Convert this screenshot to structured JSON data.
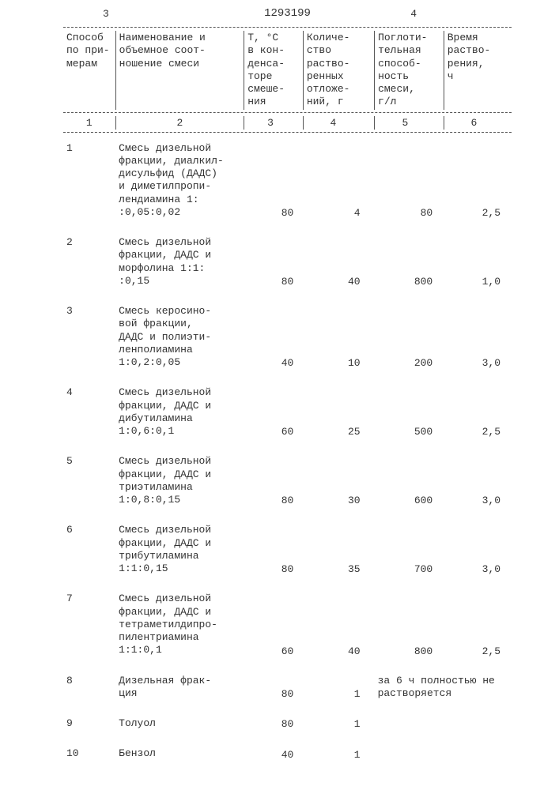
{
  "page": {
    "left_num": "3",
    "right_num": "4",
    "patent_no": "1293199"
  },
  "columns": {
    "h1": "Способ\nпо при-\nмерам",
    "h2": "Наименование и\nобъемное соот-\nношение смеси",
    "h3": "Т, °С\nв кон-\nденса-\nторе\nсмеше-\nния",
    "h4": "Количе-\nство\nраство-\nренных\nотложе-\nний, г",
    "h5": "Поглоти-\nтельная\nспособ-\nность\nсмеси,\nг/л",
    "h6": "Время\nраство-\nрения,\nч"
  },
  "colnums": {
    "n1": "1",
    "n2": "2",
    "n3": "3",
    "n4": "4",
    "n5": "5",
    "n6": "6"
  },
  "rows": [
    {
      "n": "1",
      "desc": "Смесь дизельной\nфракции, диалкил-\nдисульфид (ДАДС)\nи диметилпропи-\nлендиамина 1:\n:0,05:0,02",
      "t": "80",
      "q": "4",
      "p": "80",
      "tm": "2,5"
    },
    {
      "n": "2",
      "desc": "Смесь дизельной\nфракции, ДАДС и\nморфолина 1:1:\n:0,15",
      "t": "80",
      "q": "40",
      "p": "800",
      "tm": "1,0"
    },
    {
      "n": "3",
      "desc": "Смесь керосино-\nвой фракции,\nДАДС и полиэти-\nленполиамина\n1:0,2:0,05",
      "t": "40",
      "q": "10",
      "p": "200",
      "tm": "3,0"
    },
    {
      "n": "4",
      "desc": "Смесь дизельной\nфракции, ДАДС и\nдибутиламина\n1:0,6:0,1",
      "t": "60",
      "q": "25",
      "p": "500",
      "tm": "2,5"
    },
    {
      "n": "5",
      "desc": "Смесь дизельной\nфракции, ДАДС и\nтриэтиламина\n1:0,8:0,15",
      "t": "80",
      "q": "30",
      "p": "600",
      "tm": "3,0"
    },
    {
      "n": "6",
      "desc": "Смесь дизельной\nфракции, ДАДС и\nтрибутиламина\n1:1:0,15",
      "t": "80",
      "q": "35",
      "p": "700",
      "tm": "3,0"
    },
    {
      "n": "7",
      "desc": "Смесь дизельной\nфракции, ДАДС и\nтетраметилдипро-\nпилентриамина\n1:1:0,1",
      "t": "60",
      "q": "40",
      "p": "800",
      "tm": "2,5"
    },
    {
      "n": "8",
      "desc": "Дизельная фрак-\nция",
      "t": "80",
      "q": "1",
      "note": "за 6 ч полностью\nне растворяется"
    },
    {
      "n": "9",
      "desc": "Толуол",
      "t": "80",
      "q": "1"
    },
    {
      "n": "10",
      "desc": "Бензол",
      "t": "40",
      "q": "1"
    }
  ]
}
